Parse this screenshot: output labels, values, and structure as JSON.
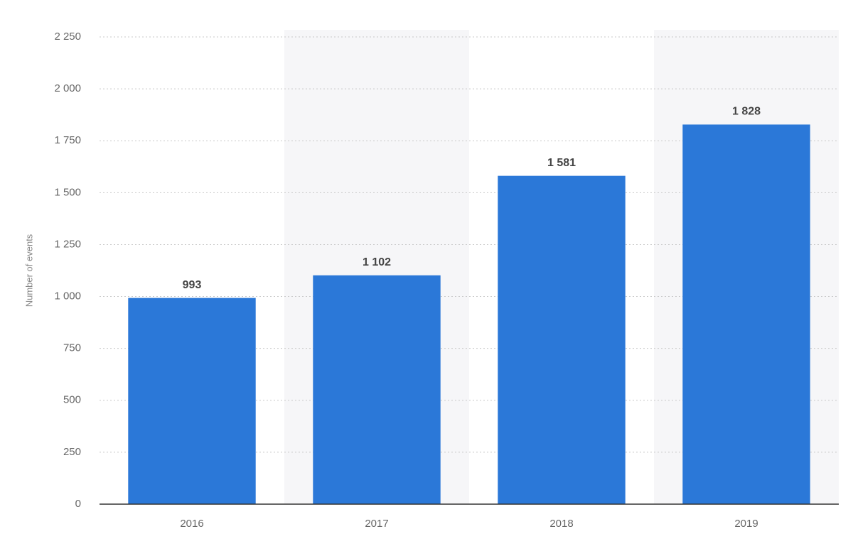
{
  "chart_data": {
    "type": "bar",
    "y_label": "Number of events",
    "categories": [
      "2016",
      "2017",
      "2018",
      "2019"
    ],
    "values": [
      993,
      1102,
      1581,
      1828
    ],
    "value_labels": [
      "993",
      "1 102",
      "1 581",
      "1 828"
    ],
    "color": "#2b78d8",
    "ylim": [
      0,
      2250
    ],
    "yticks": [
      0,
      250,
      500,
      750,
      {
        "value": 1000,
        "label": "1 000"
      },
      {
        "value": 1250,
        "label": "1 250"
      },
      {
        "value": 1500,
        "label": "1 500"
      },
      {
        "value": 1750,
        "label": "1 750"
      },
      {
        "value": 2000,
        "label": "2 000"
      },
      {
        "value": 2250,
        "label": "2 250"
      }
    ],
    "grid": true
  }
}
